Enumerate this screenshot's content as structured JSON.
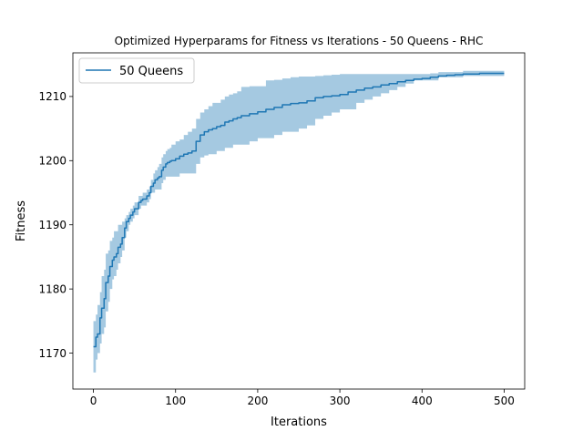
{
  "chart_data": {
    "type": "line",
    "title": "Optimized Hyperparams for Fitness vs Iterations - 50 Queens - RHC",
    "xlabel": "Iterations",
    "ylabel": "Fitness",
    "xlim": [
      -25,
      525
    ],
    "ylim": [
      1164.4,
      1216.8
    ],
    "xticks": [
      0,
      100,
      200,
      300,
      400,
      500
    ],
    "yticks": [
      1170,
      1180,
      1190,
      1200,
      1210
    ],
    "legend": {
      "position": "top-left",
      "entries": [
        "50 Queens"
      ]
    },
    "grid": false,
    "colors": {
      "line": "#1f77b4",
      "band": "#1f77b4"
    },
    "series": [
      {
        "name": "50 Queens",
        "x": [
          0,
          3,
          5,
          8,
          10,
          13,
          15,
          18,
          20,
          23,
          25,
          28,
          30,
          33,
          35,
          38,
          40,
          43,
          45,
          48,
          50,
          55,
          58,
          60,
          65,
          68,
          70,
          73,
          75,
          78,
          80,
          83,
          85,
          88,
          90,
          93,
          95,
          100,
          105,
          110,
          115,
          120,
          125,
          130,
          135,
          140,
          145,
          150,
          155,
          160,
          165,
          170,
          175,
          180,
          190,
          200,
          210,
          220,
          230,
          240,
          250,
          260,
          270,
          280,
          290,
          300,
          310,
          320,
          330,
          340,
          350,
          360,
          370,
          380,
          390,
          400,
          410,
          420,
          430,
          440,
          450,
          460,
          470,
          480,
          490,
          500
        ],
        "mean": [
          1171,
          1172.5,
          1173,
          1175.5,
          1177,
          1178.5,
          1181,
          1182,
          1183.5,
          1184.5,
          1185,
          1185.5,
          1186.5,
          1187,
          1188,
          1189.5,
          1190.5,
          1191,
          1191.5,
          1192,
          1192.5,
          1193.5,
          1193.8,
          1194,
          1194.5,
          1195,
          1196,
          1196.5,
          1197,
          1197.3,
          1197.5,
          1198.5,
          1199,
          1199.5,
          1199.7,
          1199.9,
          1200,
          1200.3,
          1200.7,
          1201,
          1201.2,
          1201.5,
          1203,
          1204,
          1204.5,
          1204.8,
          1205,
          1205.3,
          1205.5,
          1206,
          1206.2,
          1206.5,
          1206.7,
          1207,
          1207.3,
          1207.6,
          1208,
          1208.3,
          1208.7,
          1208.9,
          1209,
          1209.3,
          1209.8,
          1210,
          1210.1,
          1210.3,
          1210.7,
          1211,
          1211.3,
          1211.5,
          1211.8,
          1212,
          1212.3,
          1212.5,
          1212.7,
          1212.8,
          1213,
          1213.2,
          1213.3,
          1213.4,
          1213.5,
          1213.5,
          1213.6,
          1213.6,
          1213.6,
          1213.6
        ],
        "lower": [
          1167,
          1169,
          1170,
          1171.5,
          1173,
          1174,
          1176.5,
          1178,
          1180,
          1181.5,
          1182,
          1183,
          1184,
          1185,
          1186,
          1188,
          1189,
          1190,
          1190.5,
          1191,
          1191.5,
          1192.5,
          1193,
          1193,
          1193.5,
          1194,
          1195,
          1195,
          1195.5,
          1195.5,
          1195.5,
          1196.5,
          1197,
          1197.5,
          1197.5,
          1197.5,
          1197.5,
          1197.5,
          1198,
          1198,
          1198,
          1198,
          1199.5,
          1200.5,
          1200.8,
          1201,
          1201,
          1201.5,
          1201.5,
          1202,
          1202,
          1202.5,
          1202.5,
          1202.5,
          1203,
          1203.5,
          1203.5,
          1204,
          1204.5,
          1204.5,
          1205,
          1205.5,
          1206.5,
          1207,
          1207.5,
          1208,
          1208,
          1209,
          1209.5,
          1210,
          1210.5,
          1211,
          1211.5,
          1212,
          1212.5,
          1212.5,
          1212.5,
          1213,
          1213,
          1213,
          1213.2,
          1213.2,
          1213.2,
          1213.2,
          1213.2,
          1213.2
        ],
        "upper": [
          1175,
          1176,
          1177.5,
          1179.5,
          1182,
          1183,
          1185.5,
          1186,
          1187.5,
          1188,
          1189,
          1189,
          1190,
          1190,
          1190.5,
          1191,
          1191.5,
          1192,
          1192.5,
          1193,
          1193.5,
          1194.5,
          1194.5,
          1195,
          1195.5,
          1196,
          1197,
          1198,
          1198.5,
          1199,
          1199.5,
          1200.5,
          1201,
          1201.5,
          1201.8,
          1202,
          1202.5,
          1203,
          1203.3,
          1204,
          1204.5,
          1205,
          1206.5,
          1207.5,
          1208,
          1208.5,
          1209,
          1209,
          1209.5,
          1210,
          1210.3,
          1210.5,
          1210.8,
          1211.5,
          1211.6,
          1211.6,
          1212.5,
          1212.6,
          1212.8,
          1213,
          1213.1,
          1213.1,
          1213.2,
          1213.3,
          1213.4,
          1213.5,
          1213.5,
          1213.5,
          1213.5,
          1213.5,
          1213.5,
          1213.5,
          1213.5,
          1213.5,
          1213.5,
          1213.5,
          1213.6,
          1213.8,
          1213.8,
          1213.8,
          1214,
          1214,
          1214,
          1214,
          1214,
          1214
        ]
      }
    ]
  }
}
